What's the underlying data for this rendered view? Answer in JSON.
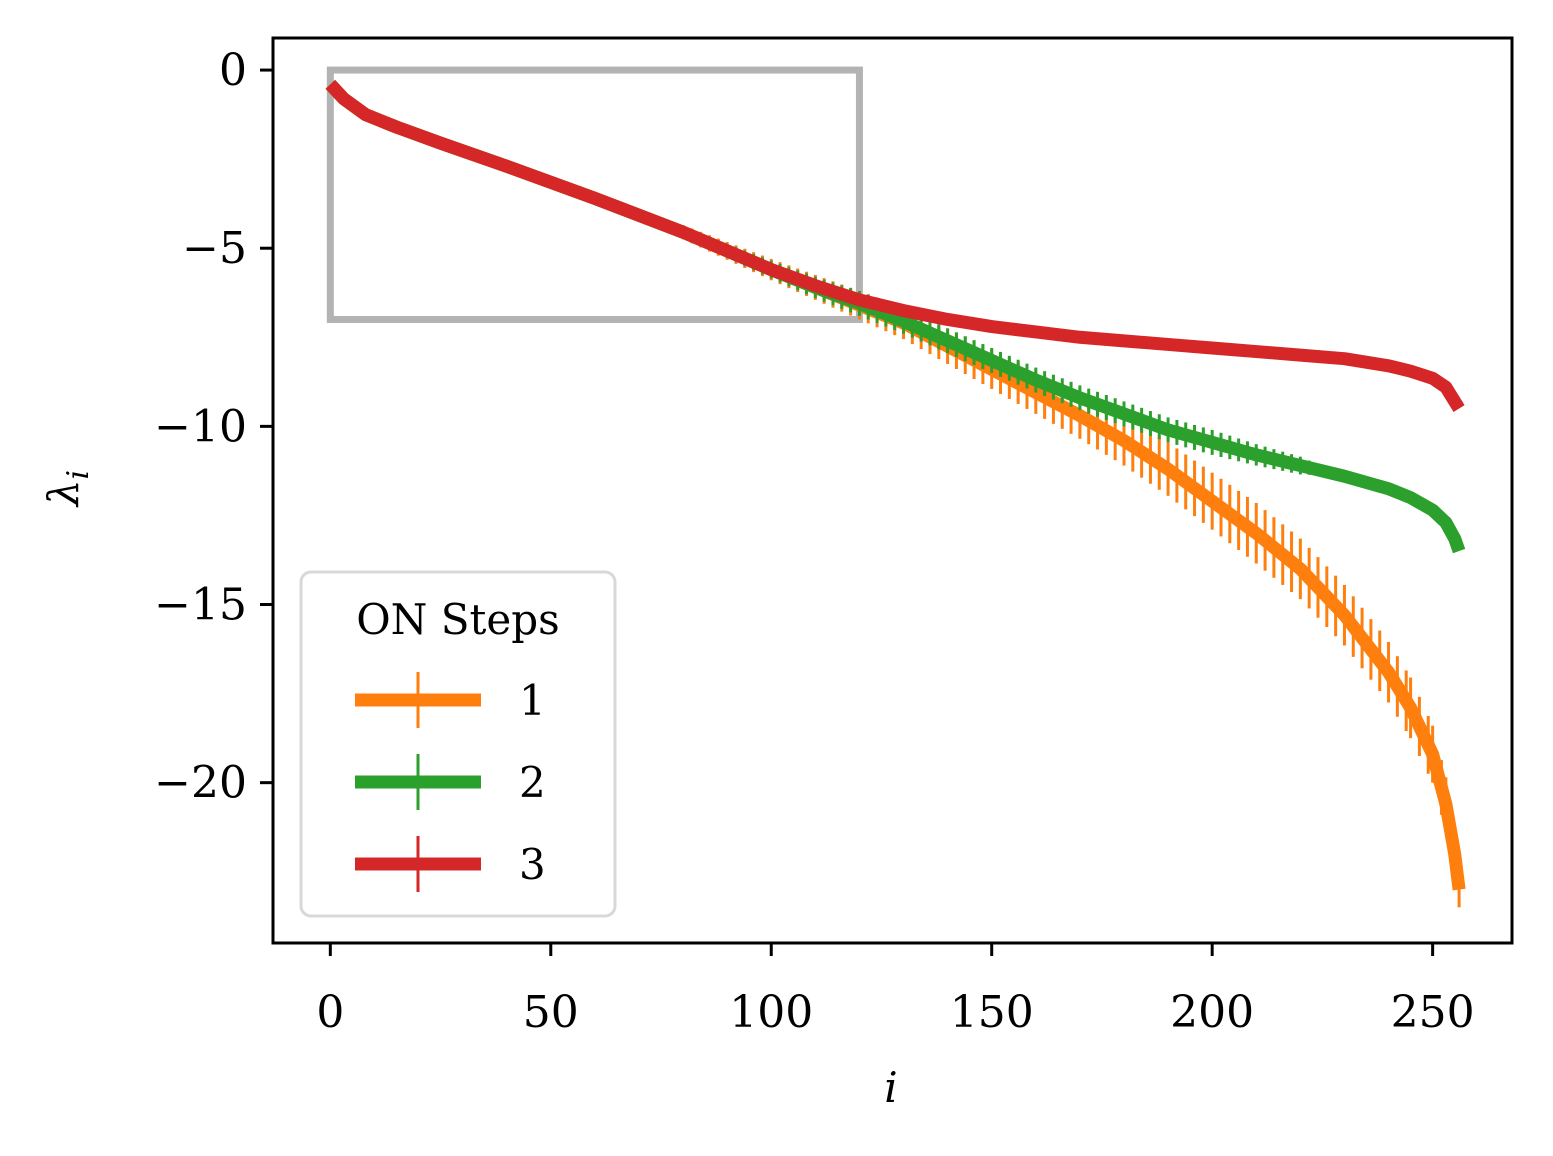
{
  "chart_data": {
    "type": "line",
    "xlabel": "i",
    "ylabel": "λ_i",
    "xlim": [
      -13,
      268
    ],
    "ylim": [
      -24.5,
      0.9
    ],
    "xticks": [
      0,
      50,
      100,
      150,
      200,
      250
    ],
    "yticks": [
      0,
      -5,
      -10,
      -15,
      -20
    ],
    "xtick_labels": [
      "0",
      "50",
      "100",
      "150",
      "200",
      "250"
    ],
    "ytick_labels": [
      "0",
      "−5",
      "−10",
      "−15",
      "−20"
    ],
    "grid": false,
    "legend": {
      "title": "ON Steps",
      "placement": "lower-left",
      "entries": [
        "1",
        "2",
        "3"
      ]
    },
    "highlight_rect": {
      "x": [
        0,
        120
      ],
      "y": [
        -7,
        0
      ],
      "color": "#b3b3b3"
    },
    "series": [
      {
        "name": "1",
        "color": "#ff7f0e",
        "x": [
          0,
          3,
          8,
          15,
          25,
          40,
          60,
          80,
          100,
          110,
          120,
          130,
          140,
          150,
          160,
          170,
          180,
          190,
          200,
          210,
          220,
          230,
          240,
          245,
          250,
          253,
          255,
          256
        ],
        "y": [
          -0.4,
          -0.8,
          -1.25,
          -1.6,
          -2.05,
          -2.7,
          -3.6,
          -4.55,
          -5.6,
          -6.1,
          -6.6,
          -7.1,
          -7.75,
          -8.4,
          -9.05,
          -9.7,
          -10.4,
          -11.2,
          -12.1,
          -13.0,
          -14.0,
          -15.3,
          -16.9,
          -17.9,
          -19.2,
          -20.6,
          -22.0,
          -23.0
        ],
        "err": [
          0,
          0,
          0,
          0,
          0,
          0,
          0.05,
          0.2,
          0.3,
          0.35,
          0.4,
          0.45,
          0.5,
          0.55,
          0.6,
          0.65,
          0.7,
          0.75,
          0.8,
          0.85,
          0.85,
          0.85,
          0.85,
          0.85,
          0.8,
          0.75,
          0.6,
          0.5
        ]
      },
      {
        "name": "2",
        "color": "#2ca02c",
        "x": [
          0,
          3,
          8,
          15,
          25,
          40,
          60,
          80,
          100,
          110,
          120,
          130,
          140,
          150,
          160,
          170,
          180,
          190,
          200,
          210,
          220,
          230,
          240,
          245,
          250,
          253,
          255,
          256
        ],
        "y": [
          -0.4,
          -0.8,
          -1.25,
          -1.6,
          -2.05,
          -2.7,
          -3.6,
          -4.55,
          -5.6,
          -6.1,
          -6.55,
          -7.05,
          -7.6,
          -8.15,
          -8.7,
          -9.2,
          -9.65,
          -10.1,
          -10.45,
          -10.8,
          -11.1,
          -11.4,
          -11.75,
          -12.0,
          -12.35,
          -12.7,
          -13.15,
          -13.5
        ],
        "err": [
          0,
          0,
          0,
          0,
          0,
          0,
          0.05,
          0.15,
          0.25,
          0.3,
          0.35,
          0.35,
          0.35,
          0.35,
          0.35,
          0.35,
          0.35,
          0.35,
          0.35,
          0.3,
          0.25,
          0,
          0,
          0,
          0,
          0,
          0,
          0
        ]
      },
      {
        "name": "3",
        "color": "#d62728",
        "x": [
          0,
          3,
          8,
          15,
          25,
          40,
          60,
          80,
          100,
          110,
          120,
          130,
          140,
          150,
          160,
          170,
          180,
          190,
          200,
          210,
          220,
          230,
          240,
          245,
          250,
          253,
          255,
          256
        ],
        "y": [
          -0.4,
          -0.8,
          -1.25,
          -1.6,
          -2.05,
          -2.7,
          -3.6,
          -4.55,
          -5.6,
          -6.05,
          -6.45,
          -6.75,
          -7.0,
          -7.2,
          -7.35,
          -7.5,
          -7.6,
          -7.7,
          -7.8,
          -7.9,
          -8.0,
          -8.1,
          -8.3,
          -8.45,
          -8.65,
          -8.9,
          -9.3,
          -9.5
        ],
        "err": [
          0,
          0,
          0,
          0,
          0,
          0,
          0,
          0,
          0,
          0,
          0,
          0,
          0,
          0,
          0,
          0,
          0,
          0,
          0,
          0,
          0,
          0,
          0,
          0,
          0,
          0,
          0,
          0
        ]
      }
    ]
  }
}
